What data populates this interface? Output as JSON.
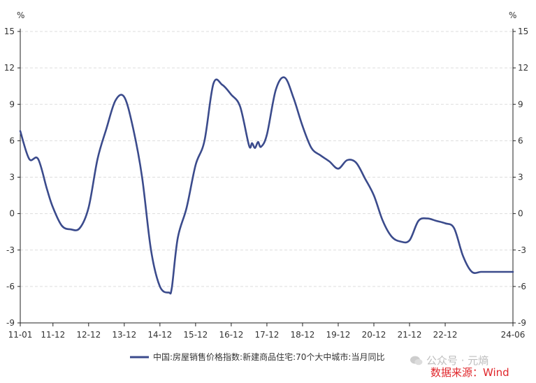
{
  "chart_data": {
    "type": "line",
    "title": "",
    "y_unit_left": "%",
    "y_unit_right": "%",
    "ylim": [
      -9,
      15
    ],
    "yticks": [
      15,
      12,
      9,
      6,
      3,
      0,
      -3,
      -6,
      -9
    ],
    "x_tick_labels": [
      "11-01",
      "11-12",
      "12-12",
      "13-12",
      "14-12",
      "15-12",
      "16-12",
      "17-12",
      "18-12",
      "19-12",
      "20-12",
      "21-12",
      "22-12",
      "24-06"
    ],
    "grid": "horizontal dashed",
    "legend_position": "bottom-center",
    "colors": {
      "series": "#3b4b8c",
      "axis": "#222222",
      "grid": "#dddddd",
      "source": "#e0262b"
    },
    "series": [
      {
        "name": "中国:房屋销售价格指数:新建商品住宅:70个大中城市:当月同比",
        "x": [
          "2011-01",
          "2011-04",
          "2011-07",
          "2011-10",
          "2011-12",
          "2012-03",
          "2012-06",
          "2012-09",
          "2012-12",
          "2013-03",
          "2013-06",
          "2013-09",
          "2013-12",
          "2014-03",
          "2014-06",
          "2014-09",
          "2014-12",
          "2015-03",
          "2015-04",
          "2015-06",
          "2015-09",
          "2015-12",
          "2016-03",
          "2016-06",
          "2016-09",
          "2016-12",
          "2017-03",
          "2017-06",
          "2017-07",
          "2017-08",
          "2017-09",
          "2017-10",
          "2017-12",
          "2018-03",
          "2018-06",
          "2018-09",
          "2018-12",
          "2019-03",
          "2019-06",
          "2019-09",
          "2019-12",
          "2020-03",
          "2020-06",
          "2020-09",
          "2020-12",
          "2021-03",
          "2021-06",
          "2021-09",
          "2021-12",
          "2022-03",
          "2022-06",
          "2022-09",
          "2022-12",
          "2023-03",
          "2023-06",
          "2023-09",
          "2023-12",
          "2024-03",
          "2024-06"
        ],
        "values": [
          6.8,
          4.5,
          4.5,
          2.0,
          0.5,
          -1.0,
          -1.3,
          -1.2,
          0.5,
          4.5,
          7.0,
          9.3,
          9.6,
          7.0,
          3.0,
          -3.0,
          -6.0,
          -6.5,
          -6.1,
          -2.0,
          0.5,
          4.0,
          6.0,
          10.7,
          10.6,
          9.8,
          8.8,
          5.6,
          5.8,
          5.4,
          5.9,
          5.5,
          6.5,
          10.2,
          11.2,
          9.5,
          7.2,
          5.4,
          4.8,
          4.3,
          3.7,
          4.4,
          4.2,
          2.9,
          1.5,
          -0.6,
          -1.9,
          -2.3,
          -2.2,
          -0.6,
          -0.4,
          -0.6,
          -0.8,
          -1.2,
          -3.5,
          -4.8,
          -4.8,
          -4.8,
          -4.8
        ]
      }
    ],
    "source_text": "数据来源：Wind",
    "watermark_text": "公众号 · 元熵"
  }
}
